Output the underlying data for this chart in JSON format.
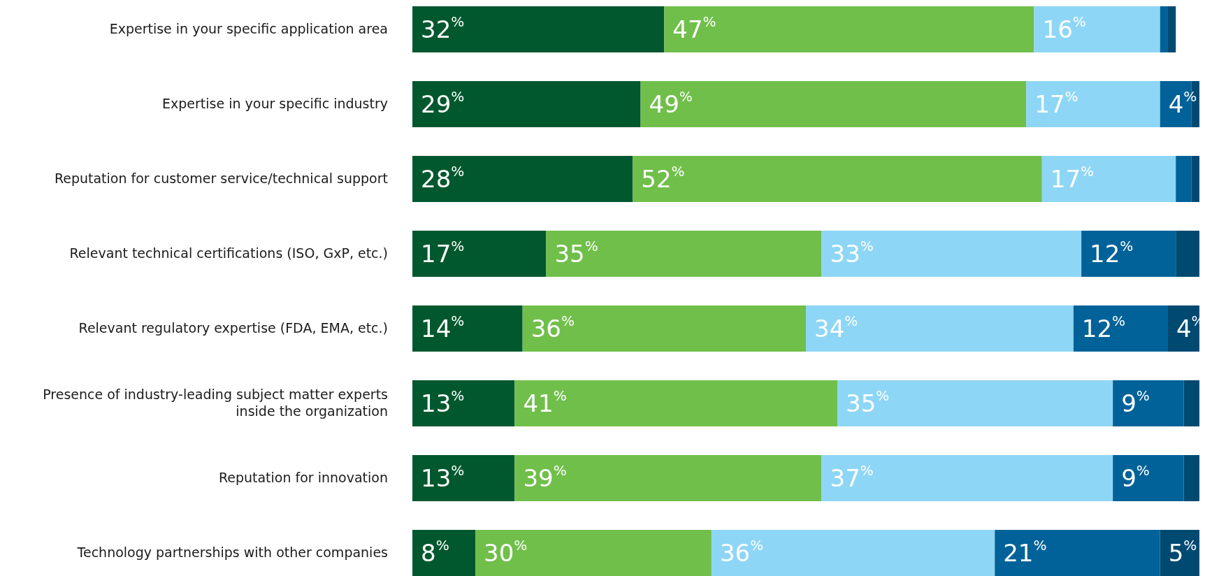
{
  "chart_data": {
    "type": "bar",
    "orientation": "horizontal",
    "stacked": true,
    "xlim": [
      0,
      100
    ],
    "categories": [
      "Expertise in your specific application area",
      "Expertise in your specific industry",
      "Reputation for customer service/technical support",
      "Relevant technical certifications (ISO, GxP, etc.)",
      "Relevant regulatory expertise (FDA, EMA, etc.)",
      "Presence of industry-leading subject matter experts inside the organization",
      "Reputation for innovation",
      "Technology partnerships with other companies"
    ],
    "series": [
      {
        "color": "#02582e",
        "values": [
          32,
          29,
          28,
          17,
          14,
          13,
          13,
          8
        ],
        "value_labels": [
          "32$^{%}$",
          "29$^{%}$",
          "28$^{%}$",
          "17$^{%}$",
          "14$^{%}$",
          "13$^{%}$",
          "13$^{%}$",
          "8$^{%}$"
        ]
      },
      {
        "color": "#70bf4a",
        "values": [
          47,
          49,
          52,
          35,
          36,
          41,
          39,
          30
        ],
        "value_labels": [
          "47$^{%}$",
          "49$^{%}$",
          "52$^{%}$",
          "35$^{%}$",
          "36$^{%}$",
          "41$^{%}$",
          "39$^{%}$",
          "30$^{%}$"
        ]
      },
      {
        "color": "#8ed6f6",
        "values": [
          16,
          17,
          17,
          33,
          34,
          35,
          37,
          36
        ],
        "value_labels": [
          "16$^{%}$",
          "17$^{%}$",
          "17$^{%}$",
          "33$^{%}$",
          "34$^{%}$",
          "35$^{%}$",
          "37$^{%}$",
          "36$^{%}$"
        ]
      },
      {
        "color": "#006298",
        "values": [
          1,
          4,
          2,
          12,
          12,
          9,
          9,
          21
        ],
        "value_labels": [
          null,
          "4$^{%}$",
          null,
          "12$^{%}$",
          "12$^{%}$",
          "9$^{%}$",
          "9$^{%}$",
          "21$^{%}$"
        ]
      },
      {
        "color": "#004a72",
        "values": [
          1,
          1,
          1,
          3,
          4,
          2,
          2,
          5
        ],
        "value_labels": [
          null,
          null,
          null,
          null,
          "4$^{%}$",
          null,
          null,
          "5$^{%}$"
        ]
      }
    ]
  }
}
